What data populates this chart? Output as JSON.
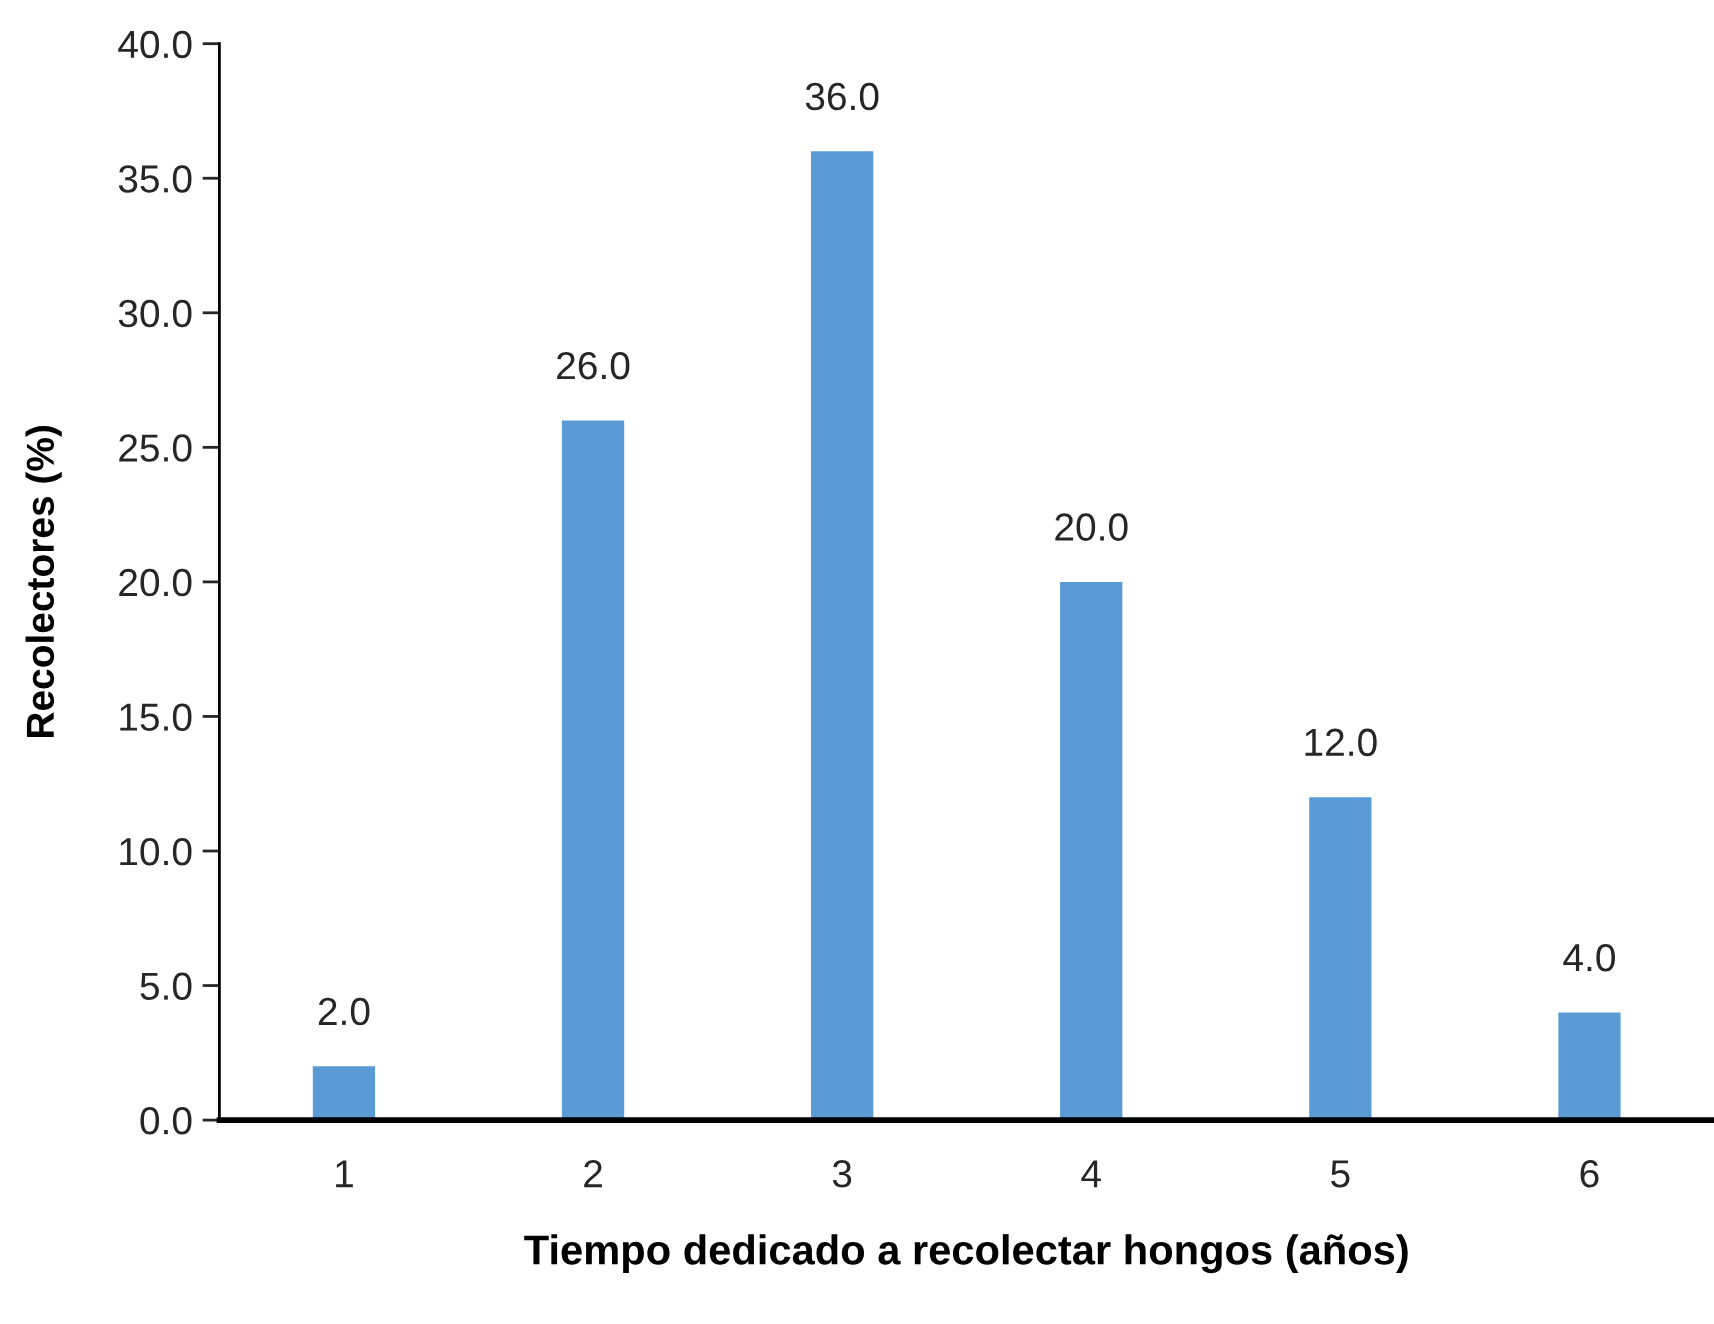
{
  "chart_data": {
    "type": "bar",
    "xlabel": "Tiempo dedicado a recolectar hongos (años)",
    "ylabel": "Recolectores (%)",
    "categories": [
      "1",
      "2",
      "3",
      "4",
      "5",
      "6"
    ],
    "values": [
      2,
      26,
      36,
      20,
      12,
      4
    ],
    "color": "#5b9bd5",
    "value_labels": [
      "2.0",
      "26.0",
      "36.0",
      "20.0",
      "12.0",
      "4.0"
    ],
    "ylim": [
      0,
      40
    ],
    "yticks": [
      {
        "value": 0,
        "label": "0.0"
      },
      {
        "value": 5,
        "label": "5.0"
      },
      {
        "value": 10,
        "label": "10.0"
      },
      {
        "value": 15,
        "label": "15.0"
      },
      {
        "value": 20,
        "label": "20.0"
      },
      {
        "value": 25,
        "label": "25.0"
      },
      {
        "value": 30,
        "label": "30.0"
      },
      {
        "value": 35,
        "label": "35.0"
      },
      {
        "value": 40,
        "label": "40.0"
      }
    ],
    "grid": false,
    "legend": false
  }
}
